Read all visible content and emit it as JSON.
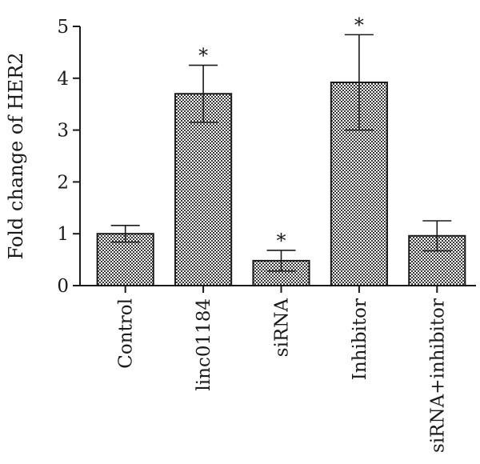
{
  "chart_data": {
    "type": "bar",
    "title": "",
    "xlabel": "",
    "ylabel": "Fold change of HER2",
    "ylim": [
      0,
      5
    ],
    "yticks": [
      0,
      1,
      2,
      3,
      4,
      5
    ],
    "grid": false,
    "legend": "none",
    "categories": [
      "Control",
      "linc01184",
      "siRNA",
      "Inhibitor",
      "siRNA+inhibitor"
    ],
    "values": [
      1.0,
      3.7,
      0.48,
      3.92,
      0.96
    ],
    "error": [
      0.16,
      0.55,
      0.2,
      0.92,
      0.29
    ],
    "significance": [
      "",
      "*",
      "*",
      "*",
      ""
    ],
    "bar_pattern": "checkered",
    "colors": {
      "bar_dark": "#3a3a3a",
      "bar_light": "#ffffff",
      "stroke": "#1a1a1a"
    }
  }
}
